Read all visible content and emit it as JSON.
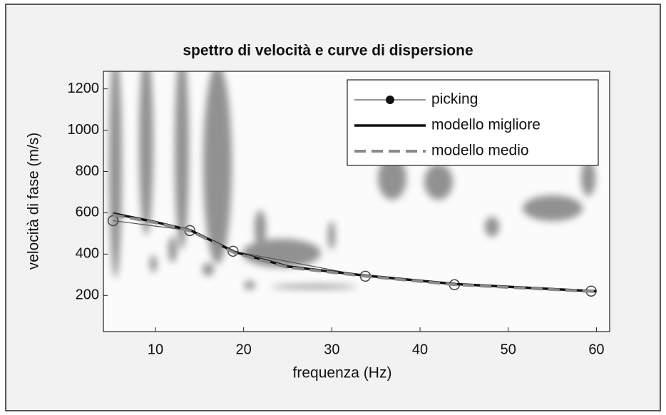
{
  "chart_data": {
    "type": "line",
    "title": "spettro di velocità e curve di dispersione",
    "x_label": "frequenza (Hz)",
    "y_label": "velocità di fase (m/s)",
    "xlim": [
      4.1,
      61.5
    ],
    "ylim": [
      25,
      1285
    ],
    "xticks": [
      10,
      20,
      30,
      40,
      50,
      60
    ],
    "yticks": [
      200,
      400,
      600,
      800,
      1000,
      1200
    ],
    "legend": "upper right",
    "series": [
      {
        "name": "picking",
        "color": "#555555",
        "style": "thin-markers",
        "x": [
          5.2,
          13.9,
          18.8,
          33.8,
          43.9,
          59.4
        ],
        "values": [
          562,
          514,
          414,
          293,
          252,
          221
        ]
      },
      {
        "name": "modello migliore",
        "color": "#111111",
        "style": "solid",
        "x": [
          5.2,
          10,
          14,
          19,
          25,
          34,
          44,
          60
        ],
        "values": [
          597,
          555,
          515,
          410,
          340,
          295,
          255,
          220
        ]
      },
      {
        "name": "modello medio",
        "color": "#8a8a8a",
        "style": "dashed",
        "x": [
          5.2,
          10,
          14,
          19,
          25,
          34,
          44,
          60
        ],
        "values": [
          590,
          552,
          512,
          405,
          336,
          292,
          252,
          218
        ]
      }
    ]
  }
}
